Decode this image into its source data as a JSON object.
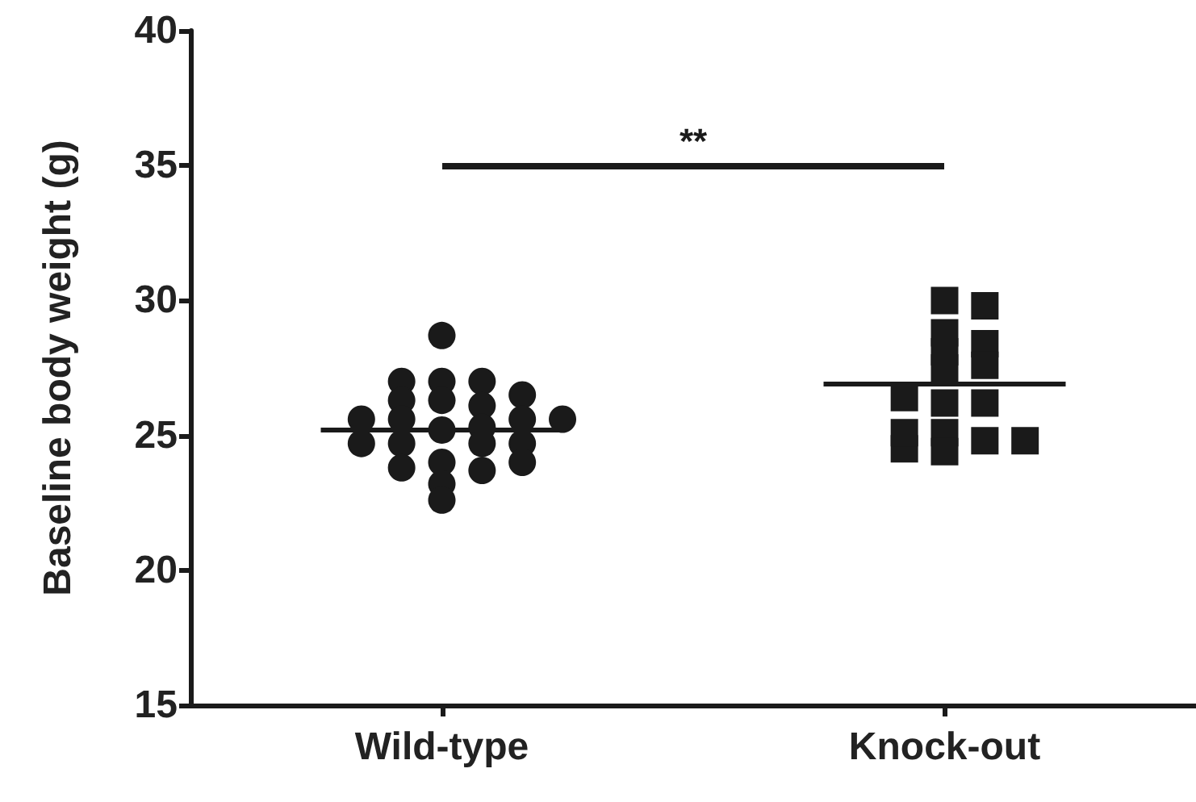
{
  "chart_data": {
    "type": "scatter",
    "ylabel": "Baseline body weight (g)",
    "categories": [
      "Wild-type",
      "Knock-out"
    ],
    "ylim": [
      15,
      40
    ],
    "yticks": [
      15,
      20,
      25,
      30,
      35,
      40
    ],
    "grid": false,
    "series": [
      {
        "marker": "circle",
        "color": "#1a1a1a",
        "x": [
          "Wild-type",
          "Wild-type",
          "Wild-type",
          "Wild-type",
          "Wild-type",
          "Wild-type",
          "Wild-type",
          "Wild-type",
          "Wild-type",
          "Wild-type",
          "Wild-type",
          "Wild-type",
          "Wild-type",
          "Wild-type",
          "Wild-type",
          "Wild-type",
          "Wild-type",
          "Wild-type",
          "Wild-type",
          "Wild-type",
          "Wild-type",
          "Wild-type",
          "Wild-type",
          "Wild-type"
        ],
        "values": [
          28.7,
          27.0,
          27.0,
          27.0,
          26.5,
          26.3,
          26.1,
          26.3,
          25.2,
          25.3,
          25.6,
          25.6,
          25.6,
          25.6,
          24.7,
          24.7,
          24.7,
          24.7,
          24.0,
          23.7,
          23.8,
          24.0,
          23.2,
          22.6
        ]
      },
      {
        "marker": "square",
        "color": "#1a1a1a",
        "x": [
          "Knock-out",
          "Knock-out",
          "Knock-out",
          "Knock-out",
          "Knock-out",
          "Knock-out",
          "Knock-out",
          "Knock-out",
          "Knock-out",
          "Knock-out",
          "Knock-out",
          "Knock-out",
          "Knock-out",
          "Knock-out",
          "Knock-out",
          "Knock-out"
        ],
        "values": [
          30.0,
          29.8,
          28.8,
          28.1,
          28.4,
          27.5,
          27.6,
          26.2,
          26.2,
          25.1,
          24.8,
          24.4,
          24.5,
          24.8,
          25.1,
          26.4
        ]
      },
      {
        "type": "box",
        "color": "#1a1a1a",
        "boxes": [
          {
            "low": 25.2,
            "q1": 25.2,
            "median": 25.2,
            "q3": 25.2,
            "high": 25.2
          },
          {
            "low": 26.9,
            "q1": 26.9,
            "median": 26.9,
            "q3": 26.9,
            "high": 26.9
          }
        ]
      }
    ],
    "annotations": [
      "**"
    ]
  }
}
